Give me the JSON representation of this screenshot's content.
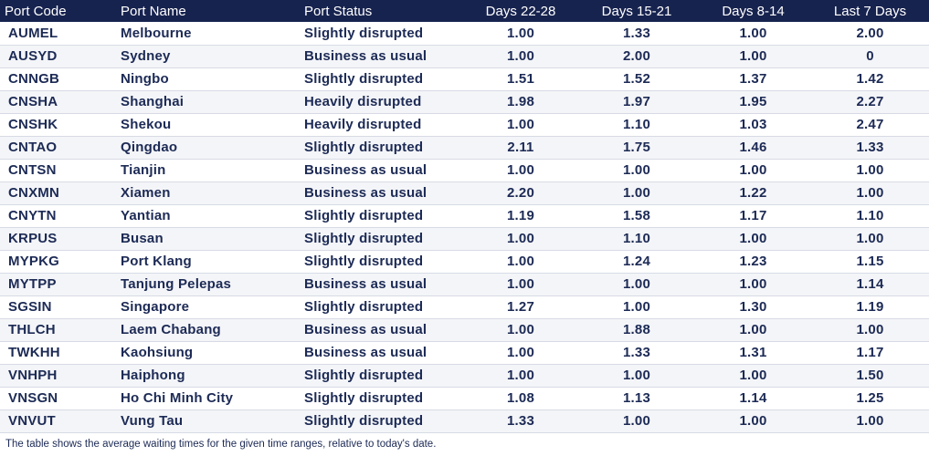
{
  "table": {
    "headers": [
      "Port Code",
      "Port Name",
      "Port Status",
      "Days 22-28",
      "Days 15-21",
      "Days 8-14",
      "Last 7 Days"
    ],
    "rows": [
      [
        "AUMEL",
        "Melbourne",
        "Slightly disrupted",
        "1.00",
        "1.33",
        "1.00",
        "2.00"
      ],
      [
        "AUSYD",
        "Sydney",
        "Business as usual",
        "1.00",
        "2.00",
        "1.00",
        "0"
      ],
      [
        "CNNGB",
        "Ningbo",
        "Slightly disrupted",
        "1.51",
        "1.52",
        "1.37",
        "1.42"
      ],
      [
        "CNSHA",
        "Shanghai",
        "Heavily disrupted",
        "1.98",
        "1.97",
        "1.95",
        "2.27"
      ],
      [
        "CNSHK",
        "Shekou",
        "Heavily disrupted",
        "1.00",
        "1.10",
        "1.03",
        "2.47"
      ],
      [
        "CNTAO",
        "Qingdao",
        "Slightly disrupted",
        "2.11",
        "1.75",
        "1.46",
        "1.33"
      ],
      [
        "CNTSN",
        "Tianjin",
        "Business as usual",
        "1.00",
        "1.00",
        "1.00",
        "1.00"
      ],
      [
        "CNXMN",
        "Xiamen",
        "Business as usual",
        "2.20",
        "1.00",
        "1.22",
        "1.00"
      ],
      [
        "CNYTN",
        "Yantian",
        "Slightly disrupted",
        "1.19",
        "1.58",
        "1.17",
        "1.10"
      ],
      [
        "KRPUS",
        "Busan",
        "Slightly disrupted",
        "1.00",
        "1.10",
        "1.00",
        "1.00"
      ],
      [
        "MYPKG",
        "Port Klang",
        "Slightly disrupted",
        "1.00",
        "1.24",
        "1.23",
        "1.15"
      ],
      [
        "MYTPP",
        "Tanjung Pelepas",
        "Business as usual",
        "1.00",
        "1.00",
        "1.00",
        "1.14"
      ],
      [
        "SGSIN",
        "Singapore",
        "Slightly disrupted",
        "1.27",
        "1.00",
        "1.30",
        "1.19"
      ],
      [
        "THLCH",
        "Laem Chabang",
        "Business as usual",
        "1.00",
        "1.88",
        "1.00",
        "1.00"
      ],
      [
        "TWKHH",
        "Kaohsiung",
        "Business as usual",
        "1.00",
        "1.33",
        "1.31",
        "1.17"
      ],
      [
        "VNHPH",
        "Haiphong",
        "Slightly disrupted",
        "1.00",
        "1.00",
        "1.00",
        "1.50"
      ],
      [
        "VNSGN",
        "Ho Chi Minh City",
        "Slightly disrupted",
        "1.08",
        "1.13",
        "1.14",
        "1.25"
      ],
      [
        "VNVUT",
        "Vung Tau",
        "Slightly disrupted",
        "1.33",
        "1.00",
        "1.00",
        "1.00"
      ]
    ]
  },
  "footnote": "The table shows the average waiting times for the given time ranges, relative to today's date.",
  "colors": {
    "header_bg": "#17234f",
    "header_text": "#ffffff",
    "body_text": "#1c2a55"
  }
}
